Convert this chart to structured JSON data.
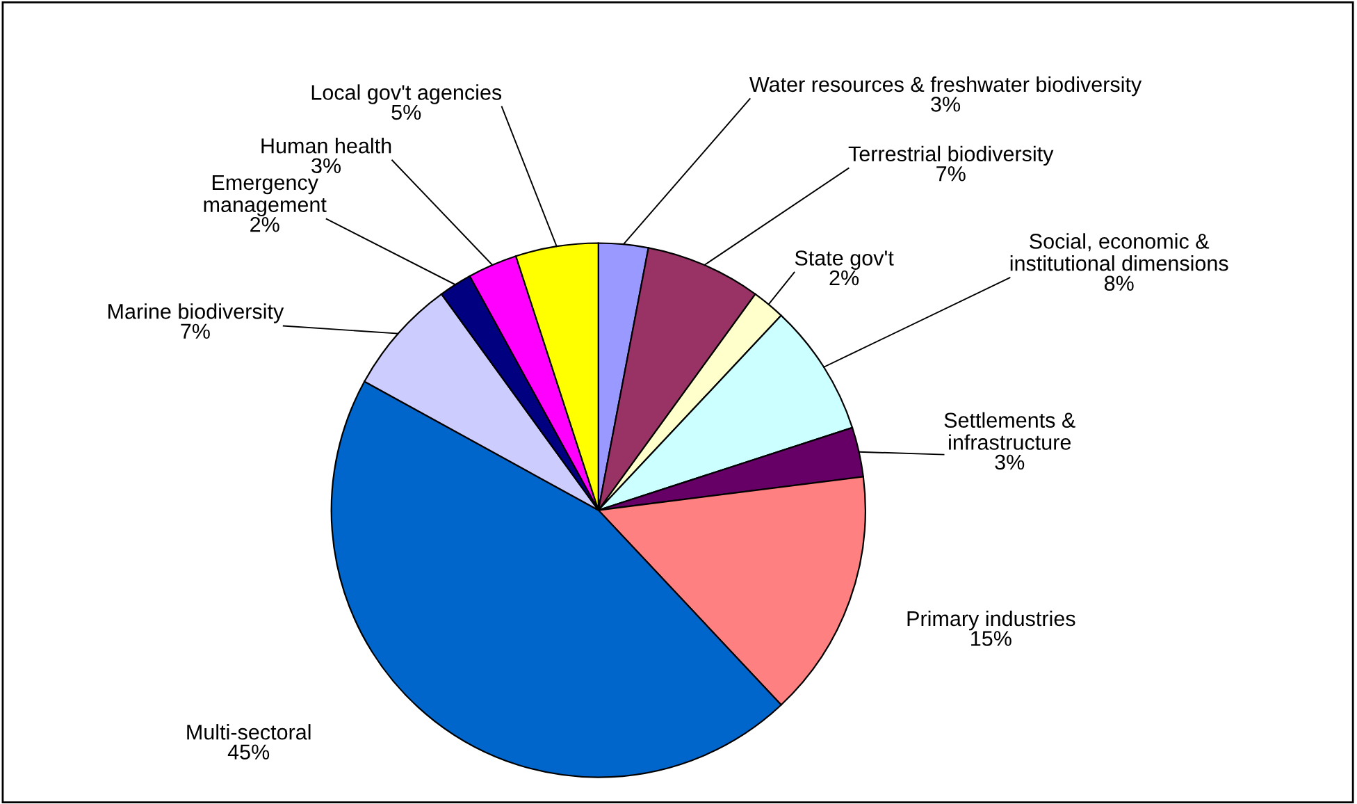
{
  "chart_data": {
    "type": "pie",
    "categories": [
      "Water resources & freshwater biodiversity",
      "Terrestrial biodiversity",
      "State gov't",
      "Social, economic &\ninstitutional dimensions",
      "Settlements &\ninfrastructure",
      "Primary industries",
      "Multi-sectoral",
      "Marine biodiversity",
      "Emergency\nmanagement",
      "Human health",
      "Local gov't agencies"
    ],
    "values": [
      3,
      7,
      2,
      8,
      3,
      15,
      45,
      7,
      2,
      3,
      5
    ],
    "colors": [
      "#9999ff",
      "#993366",
      "#ffffcc",
      "#ccffff",
      "#660066",
      "#ff8080",
      "#0066cc",
      "#ccccff",
      "#000080",
      "#ff00ff",
      "#ffff00"
    ],
    "value_labels": [
      "3%",
      "7%",
      "2%",
      "8%",
      "3%",
      "15%",
      "45%",
      "7%",
      "2%",
      "3%",
      "5%"
    ]
  }
}
